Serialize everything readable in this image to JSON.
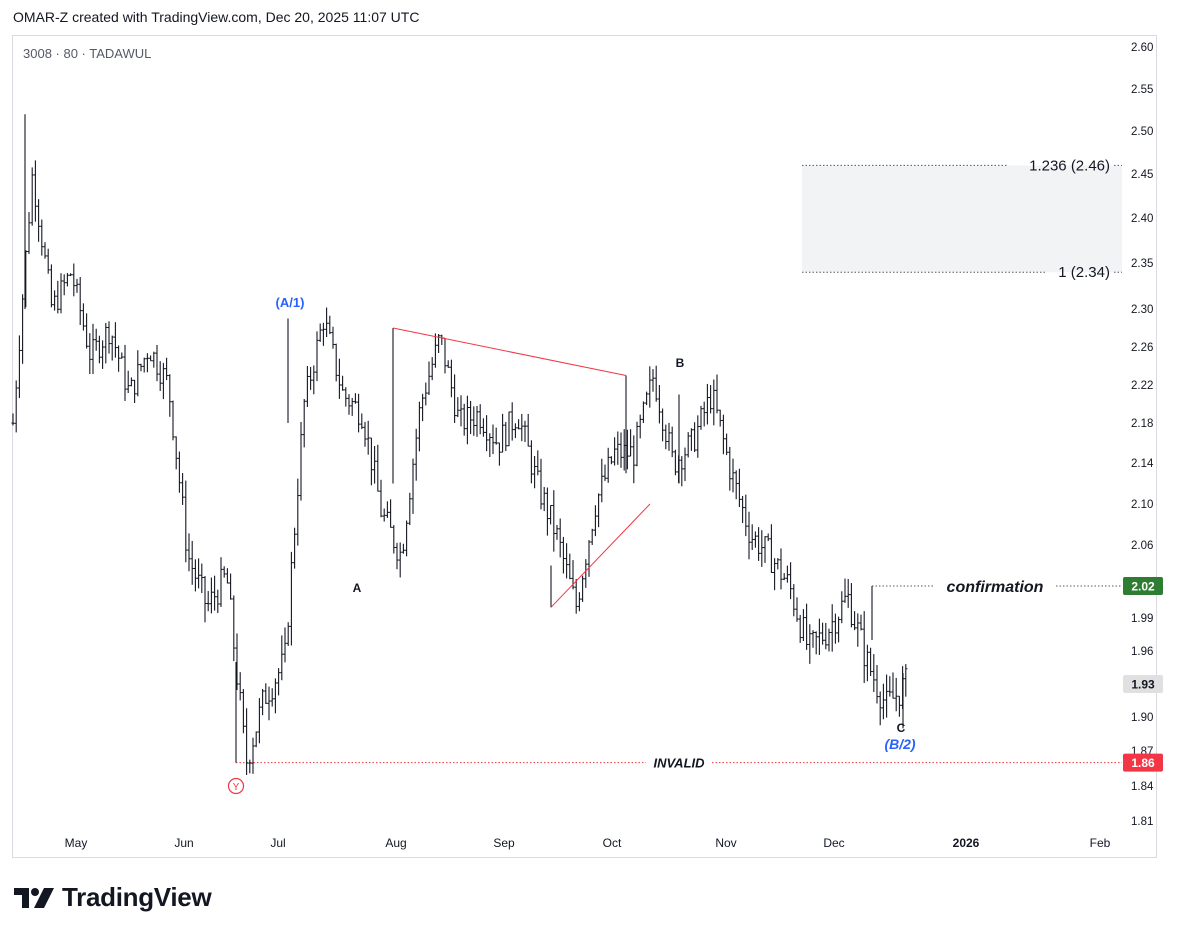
{
  "header": {
    "text": "OMAR-Z created with TradingView.com, Dec 20, 2025 11:07 UTC"
  },
  "symbol": {
    "text": "3008 · 80 · TADAWUL"
  },
  "brand": {
    "name": "TradingView",
    "logo_icon": "tradingview-logo-icon"
  },
  "chart_data": {
    "type": "ohlc-bar",
    "symbol": "3008",
    "interval": "80",
    "exchange": "TADAWUL",
    "y_axis": {
      "side": "right",
      "ticks": [
        "2.60",
        "2.55",
        "2.50",
        "2.45",
        "2.40",
        "2.35",
        "2.30",
        "2.26",
        "2.22",
        "2.18",
        "2.14",
        "2.10",
        "2.06",
        "2.02",
        "1.99",
        "1.96",
        "1.93",
        "1.90",
        "1.87",
        "1.84",
        "1.81"
      ]
    },
    "x_axis": {
      "ticks": [
        "May",
        "Jun",
        "Jul",
        "Aug",
        "Sep",
        "Oct",
        "Nov",
        "Dec",
        "2026",
        "Feb"
      ]
    },
    "price_path": [
      [
        "Apr",
        2.18
      ],
      [
        "Apr",
        2.45
      ],
      [
        "Apr",
        2.3
      ],
      [
        "Apr",
        2.34
      ],
      [
        "May",
        2.25
      ],
      [
        "May",
        2.28
      ],
      [
        "May",
        2.21
      ],
      [
        "May",
        2.26
      ],
      [
        "May",
        2.22
      ],
      [
        "Jun",
        2.05
      ],
      [
        "Jun",
        2.0
      ],
      [
        "Jun",
        2.03
      ],
      [
        "Jun",
        1.86
      ],
      [
        "Jun",
        1.92
      ],
      [
        "Jun",
        1.95
      ],
      [
        "Jul",
        2.2
      ],
      [
        "Jul",
        2.29
      ],
      [
        "Jul",
        2.21
      ],
      [
        "Jul",
        2.19
      ],
      [
        "Jul",
        2.09
      ],
      [
        "Jul",
        2.05
      ],
      [
        "Aug",
        2.2
      ],
      [
        "Aug",
        2.27
      ],
      [
        "Aug",
        2.18
      ],
      [
        "Aug",
        2.19
      ],
      [
        "Aug",
        2.16
      ],
      [
        "Aug",
        2.19
      ],
      [
        "Sep",
        2.12
      ],
      [
        "Sep",
        2.07
      ],
      [
        "Sep",
        2.0
      ],
      [
        "Sep",
        2.1
      ],
      [
        "Sep",
        2.15
      ],
      [
        "Oct",
        2.15
      ],
      [
        "Oct",
        2.23
      ],
      [
        "Oct",
        2.14
      ],
      [
        "Oct",
        2.16
      ],
      [
        "Oct",
        2.21
      ],
      [
        "Nov",
        2.13
      ],
      [
        "Nov",
        2.07
      ],
      [
        "Nov",
        2.05
      ],
      [
        "Nov",
        2.02
      ],
      [
        "Dec",
        1.96
      ],
      [
        "Dec",
        1.98
      ],
      [
        "Dec",
        2.01
      ],
      [
        "Dec",
        1.95
      ],
      [
        "Dec",
        1.91
      ],
      [
        "Dec",
        1.93
      ]
    ],
    "price_badges": [
      {
        "value": "2.02",
        "color": "#2e7d32"
      },
      {
        "value": "1.93",
        "color": "#e0e0e0",
        "text_color": "#131722"
      },
      {
        "value": "1.86",
        "color": "#f23645"
      }
    ],
    "fib_levels": [
      {
        "label": "1.236 (2.46)",
        "price": 2.46
      },
      {
        "label": "1 (2.34)",
        "price": 2.34
      }
    ],
    "horizontal_lines": [
      {
        "label": "confirmation",
        "price": 2.02,
        "color": "#555a66"
      },
      {
        "label": "INVALID",
        "price": 1.86,
        "color": "#f23645"
      }
    ],
    "wave_labels": [
      {
        "text": "(A/1)",
        "color": "#2962ff"
      },
      {
        "text": "A",
        "color": "#131722"
      },
      {
        "text": "B",
        "color": "#131722"
      },
      {
        "text": "C",
        "color": "#131722"
      },
      {
        "text": "(B/2)",
        "color": "#2962ff"
      },
      {
        "text": "Y",
        "color": "#f23645"
      }
    ],
    "trendlines_color": "#f23645",
    "colors": {
      "bars": "#131722",
      "grid": "none",
      "fib_zone": "#f2f3f5"
    }
  }
}
